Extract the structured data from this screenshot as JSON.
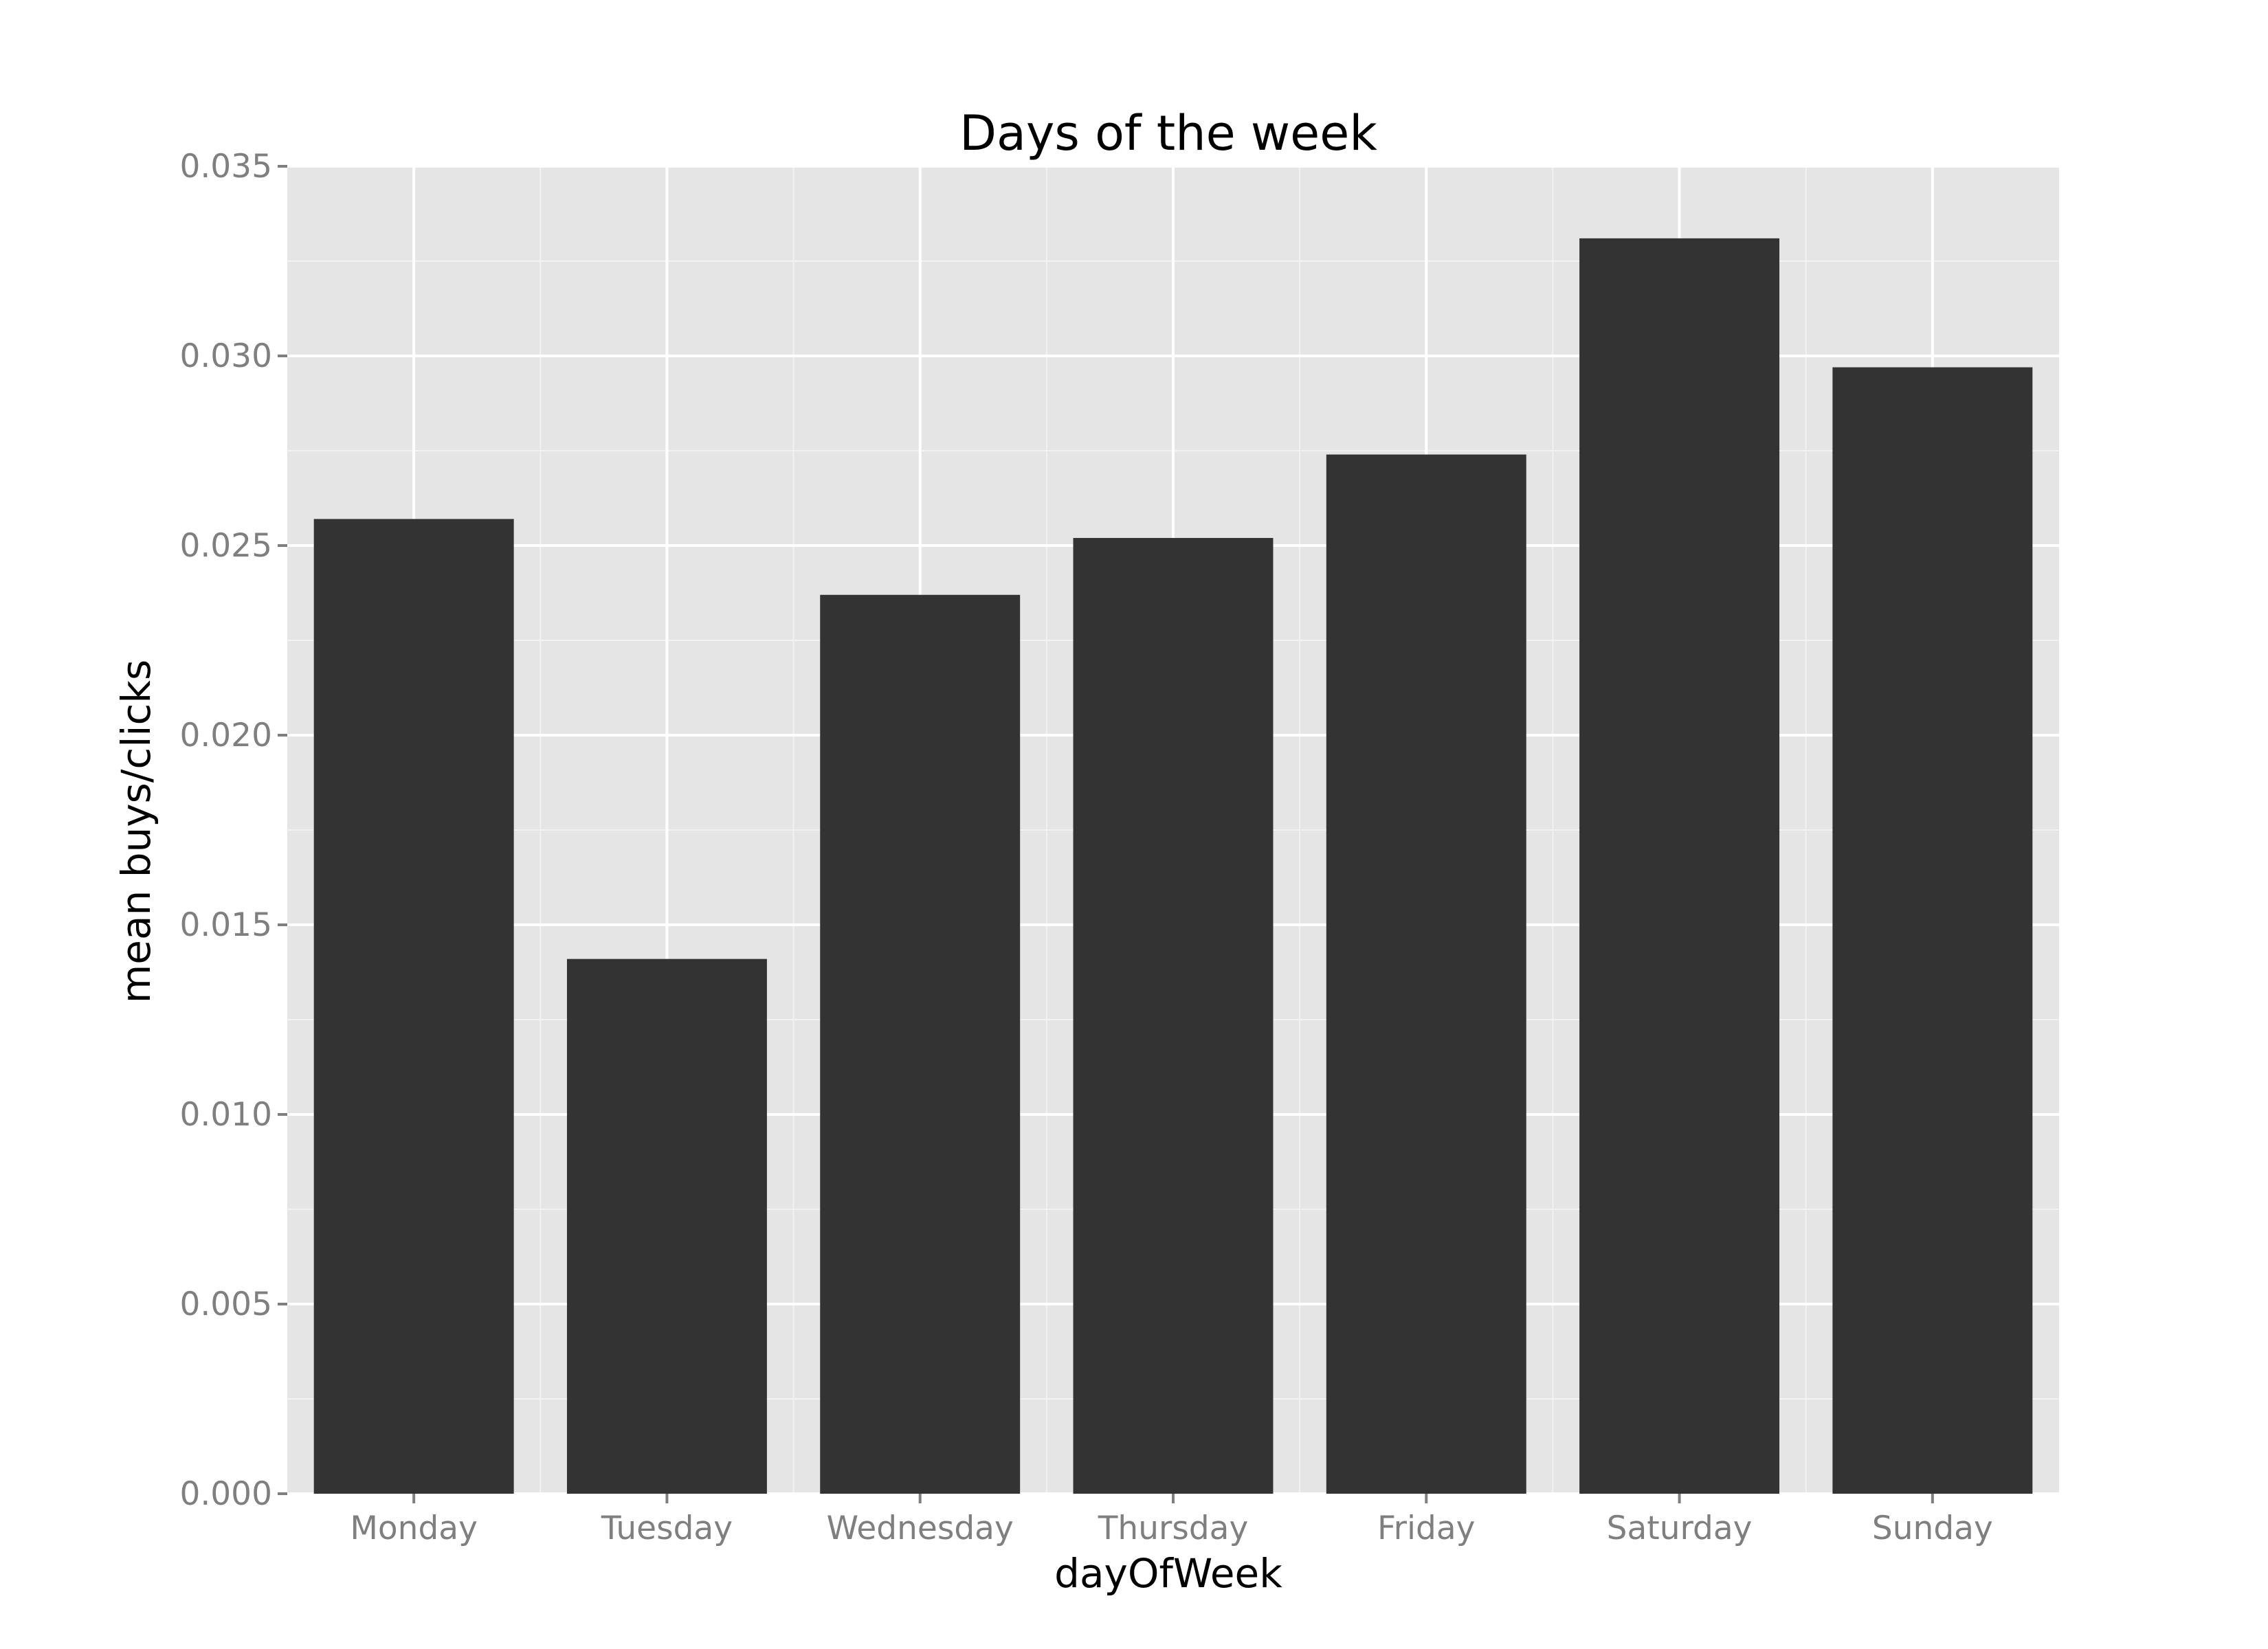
{
  "chart_data": {
    "type": "bar",
    "title": "Days of the week",
    "xlabel": "dayOfWeek",
    "ylabel": "mean buys/clicks",
    "categories": [
      "Monday",
      "Tuesday",
      "Wednesday",
      "Thursday",
      "Friday",
      "Saturday",
      "Sunday"
    ],
    "values": [
      0.0257,
      0.0141,
      0.0237,
      0.0252,
      0.0274,
      0.0331,
      0.0297
    ],
    "ylim": [
      0,
      0.035
    ],
    "yticks": [
      0.0,
      0.005,
      0.01,
      0.015,
      0.02,
      0.025,
      0.03,
      0.035
    ],
    "ytick_labels": [
      "0.000",
      "0.005",
      "0.010",
      "0.015",
      "0.020",
      "0.025",
      "0.030",
      "0.035"
    ],
    "grid": true,
    "legend": "none",
    "colors": {
      "bar": "#333333",
      "panel": "#e5e5e5",
      "grid_major": "#ffffff",
      "grid_minor": "#f2f2f2",
      "tick_text": "#7f7f7f",
      "tick_mark": "#7f7f7f"
    }
  }
}
